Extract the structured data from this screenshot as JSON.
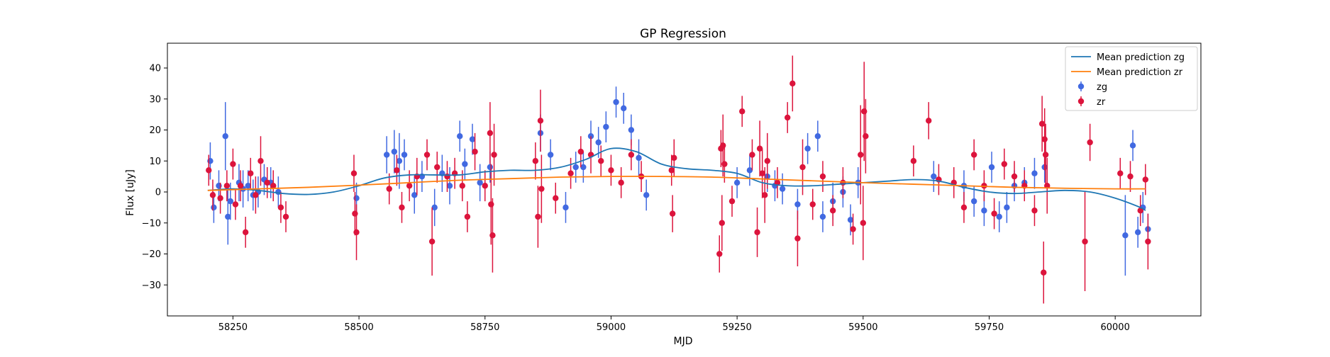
{
  "chart_data": {
    "type": "scatter",
    "title": "GP Regression",
    "xlabel": "MJD",
    "ylabel": "Flux [uJy]",
    "xlim": [
      58120,
      60170
    ],
    "ylim": [
      -40,
      48
    ],
    "x_ticks": [
      58250,
      58500,
      58750,
      59000,
      59250,
      59500,
      59750,
      60000
    ],
    "y_ticks": [
      -30,
      -20,
      -10,
      0,
      10,
      20,
      30,
      40
    ],
    "grid": false,
    "legend_position": "top-right",
    "colors": {
      "zg_line": "#1f77b4",
      "zr_line": "#ff7f0e",
      "zg_points": "#4169e1",
      "zr_points": "#dc143c"
    },
    "series": [
      {
        "name": "Mean prediction zg",
        "kind": "line",
        "x": [
          58200,
          58250,
          58300,
          58350,
          58400,
          58450,
          58500,
          58550,
          58600,
          58650,
          58700,
          58750,
          58800,
          58850,
          58900,
          58950,
          59000,
          59050,
          59100,
          59150,
          59200,
          59250,
          59300,
          59350,
          59400,
          59450,
          59500,
          59550,
          59600,
          59650,
          59700,
          59750,
          59800,
          59850,
          59900,
          59950,
          60000,
          60050,
          60060
        ],
        "y": [
          0.5,
          1,
          0.5,
          -0.5,
          -0.8,
          0,
          2,
          4.5,
          5.5,
          5.5,
          5.5,
          6.5,
          7,
          7,
          8,
          10.5,
          14,
          13,
          9,
          7.5,
          7,
          6,
          3,
          2,
          2,
          2.5,
          3,
          3.5,
          4,
          3.5,
          1.5,
          0,
          -0.5,
          0,
          0.5,
          0,
          -2,
          -5,
          -6
        ]
      },
      {
        "name": "Mean prediction zr",
        "kind": "line",
        "x": [
          58200,
          58300,
          58400,
          58500,
          58600,
          58700,
          58800,
          58900,
          59000,
          59100,
          59200,
          59300,
          59400,
          59500,
          59600,
          59700,
          59800,
          59900,
          60000,
          60060
        ],
        "y": [
          0.5,
          1,
          1.5,
          2.2,
          3,
          3.8,
          4.3,
          4.8,
          5,
          5,
          4.8,
          4.2,
          3.6,
          3,
          2.5,
          2,
          1.5,
          1.2,
          1,
          1
        ]
      },
      {
        "name": "zg",
        "kind": "errorbar",
        "x": [
          58205,
          58212,
          58222,
          58235,
          58240,
          58245,
          58262,
          58270,
          58280,
          58290,
          58300,
          58312,
          58325,
          58340,
          58495,
          58555,
          58570,
          58580,
          58590,
          58610,
          58625,
          58650,
          58665,
          58680,
          58700,
          58710,
          58725,
          58740,
          58760,
          58860,
          58880,
          58910,
          58930,
          58945,
          58960,
          58975,
          58990,
          59010,
          59025,
          59040,
          59055,
          59070,
          59250,
          59275,
          59310,
          59325,
          59340,
          59370,
          59390,
          59410,
          59420,
          59440,
          59460,
          59475,
          59490,
          59640,
          59700,
          59720,
          59740,
          59755,
          59770,
          59785,
          59800,
          59820,
          59840,
          59860,
          60020,
          60035,
          60045,
          60055,
          60065
        ],
        "y": [
          10,
          -5,
          2,
          18,
          -8,
          -3,
          3,
          1,
          2,
          -1,
          0,
          4,
          3,
          0,
          -2,
          12,
          13,
          10,
          12,
          -1,
          5,
          -5,
          6,
          2,
          18,
          9,
          17,
          3,
          8,
          19,
          12,
          -5,
          8,
          8,
          18,
          16,
          21,
          29,
          27,
          20,
          11,
          -1,
          3,
          7,
          5,
          2,
          1,
          -4,
          14,
          18,
          -8,
          -3,
          0,
          -9,
          3,
          5,
          2,
          -3,
          -6,
          8,
          -8,
          -5,
          2,
          3,
          6,
          8,
          -14,
          15,
          -13,
          -5,
          -12
        ],
        "error": [
          6,
          5,
          5,
          11,
          9,
          6,
          6,
          6,
          5,
          5,
          5,
          5,
          5,
          5,
          5,
          6,
          7,
          9,
          5,
          6,
          5,
          6,
          6,
          6,
          5,
          5,
          5,
          6,
          5,
          6,
          5,
          5,
          5,
          5,
          5,
          5,
          5,
          5,
          5,
          5,
          6,
          5,
          5,
          5,
          5,
          5,
          5,
          5,
          5,
          5,
          5,
          6,
          5,
          5,
          5,
          5,
          5,
          5,
          5,
          5,
          5,
          5,
          5,
          5,
          5,
          5,
          13,
          5,
          5,
          5,
          5
        ]
      },
      {
        "name": "zr",
        "kind": "errorbar",
        "x": [
          58202,
          58210,
          58225,
          58238,
          58250,
          58255,
          58265,
          58275,
          58285,
          58295,
          58305,
          58318,
          58330,
          58345,
          58355,
          58490,
          58492,
          58495,
          58560,
          58575,
          58585,
          58600,
          58615,
          58635,
          58645,
          58655,
          58675,
          58690,
          58705,
          58715,
          58730,
          58750,
          58760,
          58762,
          58765,
          58768,
          58850,
          58855,
          58860,
          58862,
          58890,
          58920,
          58940,
          58960,
          58980,
          59000,
          59020,
          59040,
          59060,
          59120,
          59122,
          59125,
          59215,
          59218,
          59220,
          59222,
          59225,
          59240,
          59260,
          59280,
          59290,
          59295,
          59300,
          59305,
          59310,
          59330,
          59350,
          59360,
          59370,
          59380,
          59400,
          59420,
          59440,
          59460,
          59480,
          59495,
          59500,
          59502,
          59505,
          59600,
          59630,
          59650,
          59680,
          59700,
          59720,
          59740,
          59760,
          59780,
          59800,
          59820,
          59840,
          59855,
          59858,
          59860,
          59862,
          59865,
          59940,
          59950,
          60010,
          60030,
          60050,
          60060,
          60065
        ],
        "y": [
          7,
          -1,
          -2,
          2,
          9,
          -4,
          2,
          -13,
          6,
          -1,
          10,
          3,
          2,
          -5,
          -8,
          6,
          -7,
          -13,
          1,
          7,
          -5,
          2,
          5,
          12,
          -16,
          8,
          5,
          6,
          2,
          -8,
          13,
          2,
          19,
          -4,
          -14,
          12,
          10,
          -8,
          23,
          1,
          -2,
          6,
          13,
          12,
          10,
          7,
          3,
          12,
          5,
          7,
          -7,
          11,
          -20,
          14,
          -10,
          15,
          9,
          -3,
          26,
          12,
          -13,
          14,
          6,
          -1,
          10,
          3,
          24,
          35,
          -15,
          8,
          -4,
          5,
          -6,
          3,
          -12,
          12,
          -10,
          26,
          18,
          10,
          23,
          4,
          3,
          -5,
          12,
          2,
          -7,
          9,
          5,
          2,
          -6,
          22,
          -26,
          17,
          12,
          2,
          -16,
          16,
          6,
          5,
          -6,
          4,
          -16
        ],
        "error": [
          5,
          5,
          5,
          5,
          5,
          5,
          5,
          5,
          5,
          6,
          8,
          5,
          5,
          5,
          5,
          6,
          7,
          9,
          5,
          5,
          5,
          5,
          6,
          5,
          11,
          5,
          5,
          5,
          5,
          5,
          6,
          5,
          10,
          13,
          12,
          10,
          6,
          10,
          10,
          11,
          5,
          5,
          5,
          6,
          5,
          5,
          5,
          5,
          5,
          5,
          6,
          6,
          6,
          6,
          9,
          10,
          6,
          5,
          5,
          5,
          8,
          9,
          8,
          9,
          9,
          5,
          5,
          9,
          9,
          9,
          5,
          5,
          5,
          5,
          5,
          16,
          12,
          16,
          12,
          5,
          6,
          5,
          5,
          5,
          5,
          5,
          5,
          5,
          5,
          5,
          5,
          9,
          10,
          10,
          10,
          9,
          16,
          6,
          5,
          5,
          5,
          5,
          9
        ]
      }
    ]
  }
}
